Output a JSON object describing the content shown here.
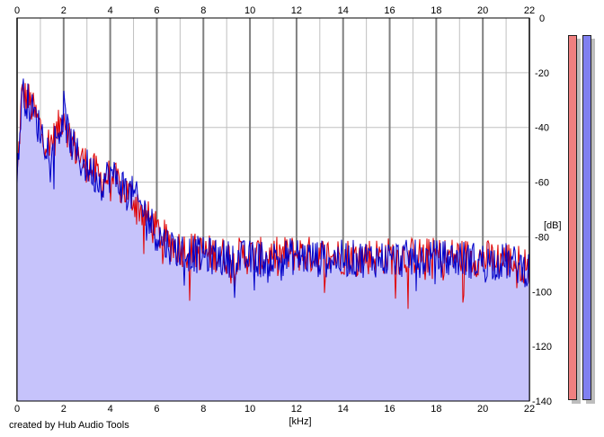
{
  "footer": "created by Hub Audio Tools",
  "chart_data": {
    "type": "area",
    "title": "",
    "xlabel": "[kHz]",
    "ylabel": "[dB]",
    "xlim": [
      0,
      22
    ],
    "ylim": [
      -140,
      0
    ],
    "x_ticks": [
      0,
      2,
      4,
      6,
      8,
      10,
      12,
      14,
      16,
      18,
      20,
      22
    ],
    "y_ticks": [
      0,
      -20,
      -40,
      -60,
      -80,
      -100,
      -120,
      -140
    ],
    "grid": true,
    "colors": {
      "fill": "#c6c3fb",
      "left": "#e00000",
      "right": "#0000c8",
      "grid": "#c0c0c0",
      "major_grid": "#808080"
    },
    "series": [
      {
        "x": [
          0,
          0.2,
          0.5,
          0.8,
          1.0,
          1.3,
          1.6,
          1.9,
          2.0,
          2.2,
          2.5,
          2.8,
          3.2,
          3.6,
          4.0,
          4.5,
          5.0,
          5.5,
          6.0,
          6.5,
          7.0,
          7.5,
          8.0,
          8.5,
          9.0,
          10.0,
          11.0,
          12.0,
          13.0,
          14.0,
          15.0,
          16.0,
          17.0,
          18.0,
          19.0,
          20.0,
          21.0,
          22.0
        ],
        "values": [
          -60,
          -28,
          -30,
          -36,
          -40,
          -46,
          -44,
          -38,
          -34,
          -42,
          -48,
          -52,
          -55,
          -59,
          -58,
          -62,
          -66,
          -72,
          -78,
          -82,
          -84,
          -85,
          -86,
          -86,
          -87,
          -87,
          -87,
          -86,
          -87,
          -87,
          -87,
          -87,
          -87,
          -87,
          -87,
          -88,
          -88,
          -91
        ]
      },
      {
        "x": [
          0,
          0.2,
          0.5,
          0.8,
          1.0,
          1.3,
          1.6,
          1.9,
          2.0,
          2.2,
          2.5,
          2.8,
          3.2,
          3.6,
          4.0,
          4.5,
          5.0,
          5.5,
          6.0,
          6.5,
          7.0,
          7.5,
          8.0,
          8.5,
          9.0,
          10.0,
          11.0,
          12.0,
          13.0,
          14.0,
          15.0,
          16.0,
          17.0,
          18.0,
          19.0,
          20.0,
          21.0,
          22.0
        ],
        "values": [
          -62,
          -27,
          -31,
          -37,
          -41,
          -47,
          -45,
          -39,
          -33,
          -43,
          -49,
          -53,
          -56,
          -60,
          -57,
          -61,
          -65,
          -71,
          -79,
          -83,
          -85,
          -86,
          -87,
          -87,
          -88,
          -88,
          -88,
          -87,
          -88,
          -88,
          -88,
          -88,
          -88,
          -88,
          -88,
          -89,
          -89,
          -92
        ]
      }
    ],
    "meters": {
      "left": 1.0,
      "right": 1.0,
      "colors": [
        "#f08080",
        "#8080f0"
      ]
    }
  }
}
